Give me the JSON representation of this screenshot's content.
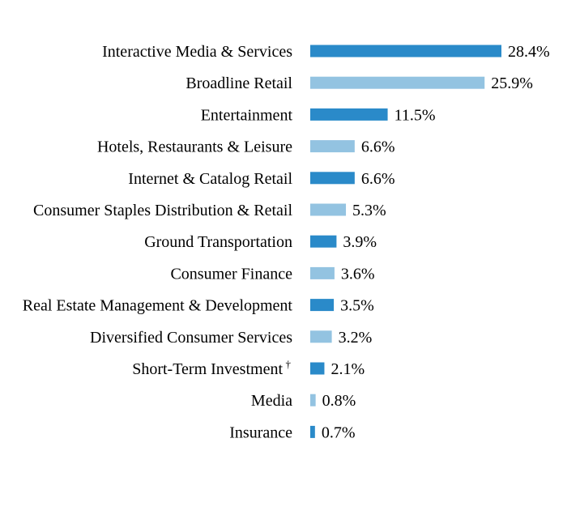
{
  "colors": {
    "dark": "#2a8ac9",
    "light": "#93c3e1",
    "text": "#000000"
  },
  "chart_data": {
    "type": "bar",
    "orientation": "horizontal",
    "title": "",
    "xlabel": "",
    "ylabel": "",
    "xlim": [
      0,
      28.4
    ],
    "grid": false,
    "legend": "none",
    "categories": [
      "Interactive Media & Services",
      "Broadline Retail",
      "Entertainment",
      "Hotels, Restaurants & Leisure",
      "Internet & Catalog Retail",
      "Consumer Staples Distribution & Retail",
      "Ground Transportation",
      "Consumer Finance",
      "Real Estate Management & Development",
      "Diversified Consumer Services",
      "Short-Term Investment",
      "Media",
      "Insurance"
    ],
    "values": [
      28.4,
      25.9,
      11.5,
      6.6,
      6.6,
      5.3,
      3.9,
      3.6,
      3.5,
      3.2,
      2.1,
      0.8,
      0.7
    ],
    "value_labels": [
      "28.4%",
      "25.9%",
      "11.5%",
      "6.6%",
      "6.6%",
      "5.3%",
      "3.9%",
      "3.6%",
      "3.5%",
      "3.2%",
      "2.1%",
      "0.8%",
      "0.7%"
    ],
    "footnote_markers": [
      "",
      "",
      "",
      "",
      "",
      "",
      "",
      "",
      "",
      "",
      "†",
      "",
      ""
    ],
    "bar_colors": [
      "dark",
      "light",
      "dark",
      "light",
      "dark",
      "light",
      "dark",
      "light",
      "dark",
      "light",
      "dark",
      "light",
      "dark"
    ]
  }
}
